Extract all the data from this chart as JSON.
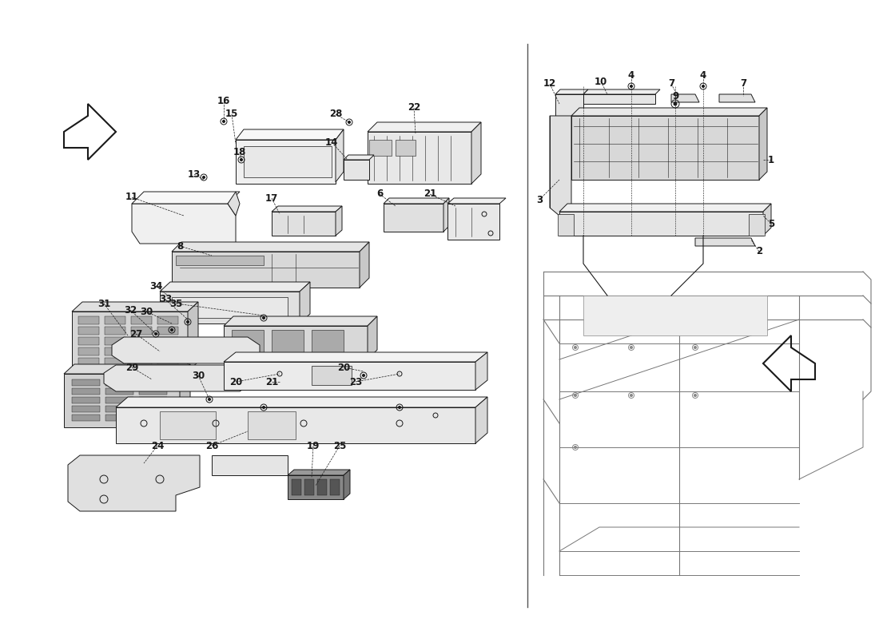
{
  "bg_color": "#ffffff",
  "line_color": "#1a1a1a",
  "figsize": [
    11.0,
    8.0
  ],
  "dpi": 100
}
